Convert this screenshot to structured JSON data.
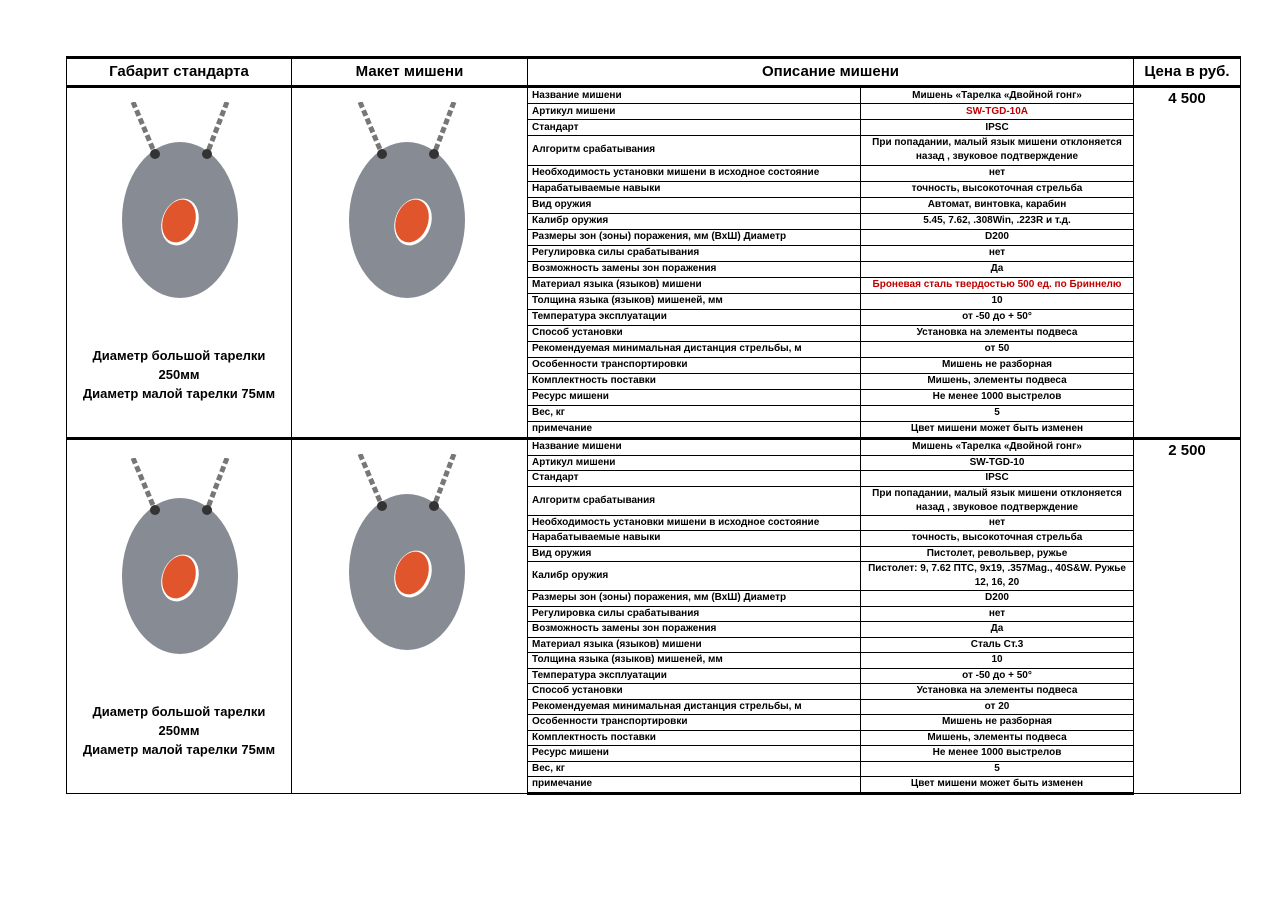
{
  "header": [
    "Габарит стандарта",
    "Макет мишени",
    "Описание мишени",
    "Цена в руб."
  ],
  "products": [
    {
      "size_lines": [
        "Диаметр большой тарелки",
        "250мм",
        "Диаметр малой тарелки 75мм"
      ],
      "price": "4 500",
      "specs": [
        {
          "label": "Название мишени",
          "value": "Мишень «Тарелка «Двойной гонг»"
        },
        {
          "label": "Артикул мишени",
          "value": "SW-TGD-10A",
          "color": "#c00000"
        },
        {
          "label": "Стандарт",
          "value": "IPSC"
        },
        {
          "label": "Алгоритм срабатывания",
          "value": "При попадании, малый язык мишени отклоняется назад , звуковое подтверждение"
        },
        {
          "label": "Необходимость установки мишени в исходное состояние",
          "value": "нет"
        },
        {
          "label": "Нарабатываемые навыки",
          "value": "точность, высокоточная стрельба"
        },
        {
          "label": "Вид оружия",
          "value": "Автомат, винтовка, карабин"
        },
        {
          "label": "Калибр оружия",
          "value": "5.45, 7.62, .308Win, .223R и т.д."
        },
        {
          "label": "Размеры зон (зоны) поражения, мм (ВхШ) Диаметр",
          "value": "D200"
        },
        {
          "label": "Регулировка силы срабатывания",
          "value": "нет"
        },
        {
          "label": "Возможность замены зон поражения",
          "value": "Да"
        },
        {
          "label": "Материал языка (языков) мишени",
          "value": "Броневая сталь твердостью 500 ед. по Бриннелю",
          "color": "#c00000"
        },
        {
          "label": "Толщина языка (языков) мишеней, мм",
          "value": "10"
        },
        {
          "label": "Температура эксплуатации",
          "value": "от -50 до + 50°"
        },
        {
          "label": "Способ установки",
          "value": "Установка на элементы подвеса"
        },
        {
          "label": "Рекомендуемая минимальная дистанция стрельбы, м",
          "value": "от 50"
        },
        {
          "label": "Особенности транспортировки",
          "value": "Мишень  не разборная"
        },
        {
          "label": "Комплектность поставки",
          "value": "Мишень, элементы подвеса"
        },
        {
          "label": "Ресурс мишени",
          "value": "Не менее 1000 выстрелов"
        },
        {
          "label": "Вес, кг",
          "value": "5"
        },
        {
          "label": "примечание",
          "value": "Цвет мишени может быть изменен"
        }
      ]
    },
    {
      "size_lines": [
        "Диаметр большой тарелки",
        "250мм",
        "Диаметр малой тарелки 75мм"
      ],
      "price": "2 500",
      "specs": [
        {
          "label": "Название мишени",
          "value": "Мишень «Тарелка «Двойной гонг»"
        },
        {
          "label": "Артикул мишени",
          "value": "SW-TGD-10"
        },
        {
          "label": "Стандарт",
          "value": "IPSC"
        },
        {
          "label": "Алгоритм срабатывания",
          "value": "При попадании, малый язык мишени отклоняется назад , звуковое подтверждение"
        },
        {
          "label": "Необходимость установки мишени в исходное состояние",
          "value": "нет"
        },
        {
          "label": "Нарабатываемые навыки",
          "value": "точность, высокоточная стрельба"
        },
        {
          "label": "Вид оружия",
          "value": "Пистолет, револьвер, ружье"
        },
        {
          "label": "Калибр оружия",
          "value": "Пистолет: 9, 7.62 ПТС, 9х19, .357Mag., 40S&W. Ружье 12, 16, 20"
        },
        {
          "label": "Размеры зон (зоны) поражения, мм (ВхШ) Диаметр",
          "value": "D200"
        },
        {
          "label": "Регулировка силы срабатывания",
          "value": "нет"
        },
        {
          "label": "Возможность замены зон поражения",
          "value": "Да"
        },
        {
          "label": "Материал языка (языков) мишени",
          "value": "Сталь Ст.3"
        },
        {
          "label": "Толщина языка (языков) мишеней, мм",
          "value": "10"
        },
        {
          "label": "Температура эксплуатации",
          "value": "от -50 до + 50°"
        },
        {
          "label": "Способ установки",
          "value": "Установка на элементы подвеса"
        },
        {
          "label": "Рекомендуемая минимальная дистанция стрельбы, м",
          "value": "от 20"
        },
        {
          "label": "Особенности транспортировки",
          "value": "Мишень  не разборная"
        },
        {
          "label": "Комплектность поставки",
          "value": "Мишень, элементы подвеса"
        },
        {
          "label": "Ресурс мишени",
          "value": "Не менее 1000 выстрелов"
        },
        {
          "label": "Вес, кг",
          "value": "5"
        },
        {
          "label": "примечание",
          "value": "Цвет мишени может быть изменен"
        }
      ]
    }
  ]
}
